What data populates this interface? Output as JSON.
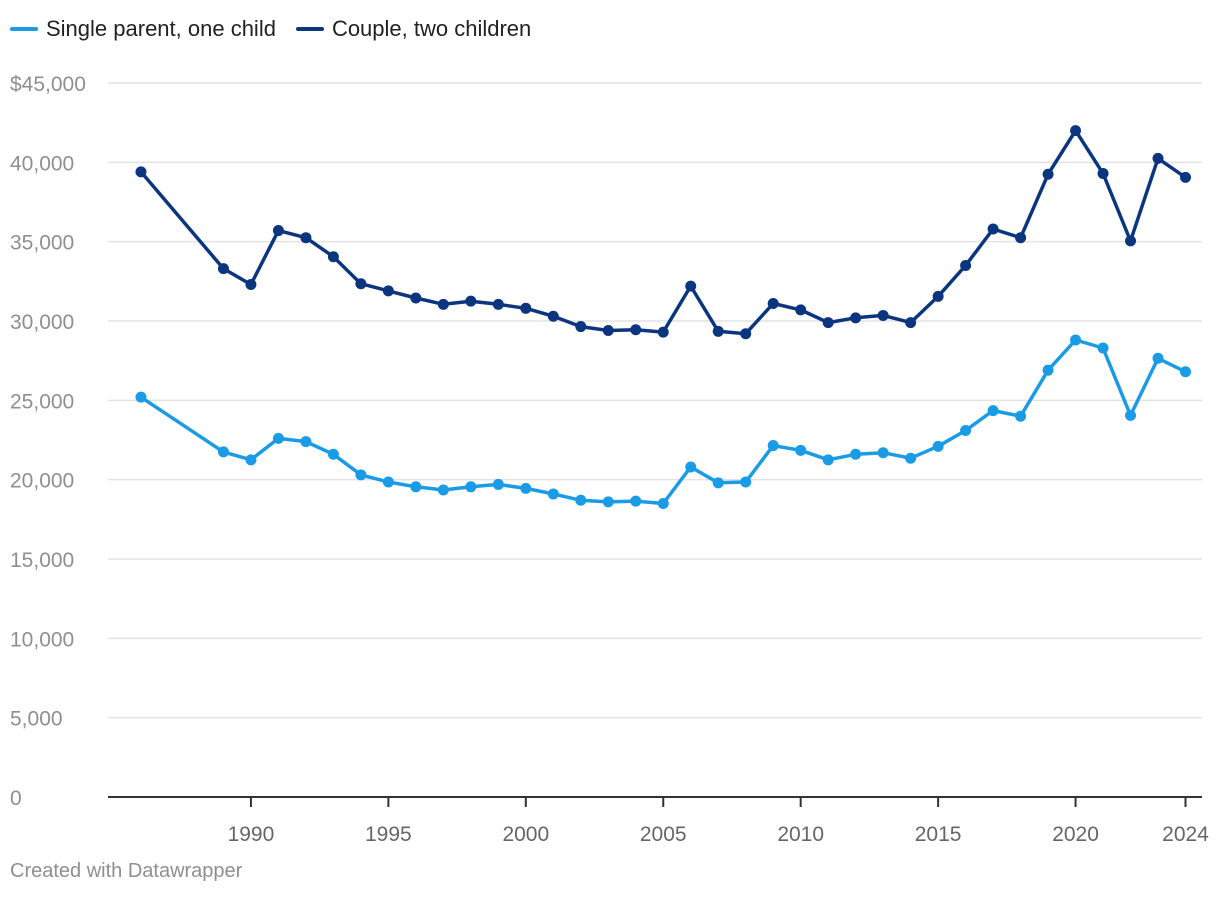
{
  "chart_data": {
    "type": "line",
    "title": "",
    "xlabel": "",
    "ylabel": "",
    "x": [
      1986,
      1989,
      1990,
      1991,
      1992,
      1993,
      1994,
      1995,
      1996,
      1997,
      1998,
      1999,
      2000,
      2001,
      2002,
      2003,
      2004,
      2005,
      2006,
      2007,
      2008,
      2009,
      2010,
      2011,
      2012,
      2013,
      2014,
      2015,
      2016,
      2017,
      2018,
      2019,
      2020,
      2021,
      2022,
      2023,
      2024
    ],
    "xlim": [
      1984.8,
      2024.6
    ],
    "ylim": [
      0,
      45000
    ],
    "y_ticks": [
      0,
      5000,
      10000,
      15000,
      20000,
      25000,
      30000,
      35000,
      40000,
      45000
    ],
    "y_tick_labels": [
      "0",
      "5,000",
      "10,000",
      "15,000",
      "20,000",
      "25,000",
      "30,000",
      "35,000",
      "40,000",
      "$45,000"
    ],
    "x_ticks": [
      1990,
      1995,
      2000,
      2005,
      2010,
      2015,
      2020,
      2024
    ],
    "x_tick_labels": [
      "1990",
      "1995",
      "2000",
      "2005",
      "2010",
      "2015",
      "2020",
      "2024"
    ],
    "grid": "horizontal",
    "legend_position": "top-left",
    "series": [
      {
        "name": "Single parent, one child",
        "color": "#1a9be6",
        "values": [
          25200,
          21750,
          21250,
          22600,
          22400,
          21600,
          20300,
          19850,
          19550,
          19350,
          19550,
          19700,
          19450,
          19100,
          18700,
          18600,
          18650,
          18500,
          20800,
          19800,
          19850,
          22150,
          21850,
          21250,
          21600,
          21700,
          21350,
          22100,
          23100,
          24350,
          24000,
          26900,
          28800,
          28300,
          24050,
          27650,
          26800
        ]
      },
      {
        "name": "Couple, two children",
        "color": "#0c3580",
        "values": [
          39400,
          33300,
          32300,
          35700,
          35250,
          34050,
          32350,
          31900,
          31450,
          31050,
          31250,
          31050,
          30800,
          30300,
          29650,
          29400,
          29450,
          29300,
          32200,
          29350,
          29200,
          31100,
          30700,
          29900,
          30200,
          30350,
          29900,
          31550,
          33500,
          35800,
          35250,
          39250,
          42000,
          39300,
          35050,
          40250,
          39050
        ]
      }
    ]
  },
  "footer": {
    "credit": "Created with Datawrapper"
  }
}
